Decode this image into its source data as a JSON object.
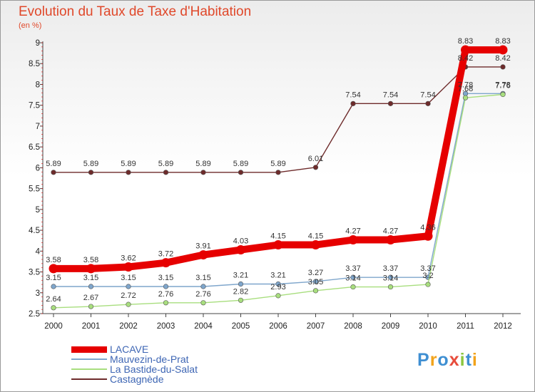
{
  "chart_data": {
    "type": "line",
    "title": "Evolution du Taux de Taxe d'Habitation",
    "subtitle": "(en %)",
    "categories": [
      "2000",
      "2001",
      "2002",
      "2003",
      "2004",
      "2005",
      "2006",
      "2007",
      "2008",
      "2009",
      "2010",
      "2011",
      "2012"
    ],
    "ylim": [
      2.5,
      9
    ],
    "yticks": [
      "2.5",
      "3",
      "3.5",
      "4",
      "4.5",
      "5",
      "5.5",
      "6",
      "6.5",
      "7",
      "7.5",
      "8",
      "8.5",
      "9"
    ],
    "grid": false,
    "legend_position": "bottom-left",
    "series": [
      {
        "name": "LACAVE",
        "color": "#e60000",
        "values": [
          3.58,
          3.58,
          3.62,
          3.72,
          3.91,
          4.03,
          4.15,
          4.15,
          4.27,
          4.27,
          4.36,
          8.83,
          8.83
        ],
        "labels": [
          "3.58",
          "3.58",
          "3.62",
          "3.72",
          "3.91",
          "4.03",
          "4.15",
          "4.15",
          "4.27",
          "4.27",
          "4.36",
          "8.83",
          "8.83"
        ]
      },
      {
        "name": "Mauvezin-de-Prat",
        "color": "#7fa6cc",
        "values": [
          3.15,
          3.15,
          3.15,
          3.15,
          3.15,
          3.21,
          3.21,
          3.27,
          3.37,
          3.37,
          3.37,
          7.78,
          7.78
        ],
        "labels": [
          "3.15",
          "3.15",
          "3.15",
          "3.15",
          "3.15",
          "3.21",
          "3.21",
          "3.27",
          "3.37",
          "3.37",
          "3.37",
          "7.78",
          "7.78"
        ]
      },
      {
        "name": "La Bastide-du-Salat",
        "color": "#a8de7e",
        "values": [
          2.64,
          2.67,
          2.72,
          2.76,
          2.76,
          2.82,
          2.93,
          3.05,
          3.14,
          3.14,
          3.2,
          7.68,
          7.76
        ],
        "labels": [
          "2.64",
          "2.67",
          "2.72",
          "2.76",
          "2.76",
          "2.82",
          "2.93",
          "3.05",
          "3.14",
          "3.14",
          "3.2",
          "7.68",
          "7.76"
        ]
      },
      {
        "name": "Castagnède",
        "color": "#6e2b2b",
        "values": [
          5.89,
          5.89,
          5.89,
          5.89,
          5.89,
          5.89,
          5.89,
          6.01,
          7.54,
          7.54,
          7.54,
          8.42,
          8.42
        ],
        "labels": [
          "5.89",
          "5.89",
          "5.89",
          "5.89",
          "5.89",
          "5.89",
          "5.89",
          "6.01",
          "7.54",
          "7.54",
          "7.54",
          "8.42",
          "8.42"
        ]
      }
    ]
  },
  "logo": {
    "letters": [
      "P",
      "r",
      "o",
      "x",
      "i",
      "t",
      "i"
    ],
    "colors": [
      "#3f8fd2",
      "#f2a31b",
      "#3f8fd2",
      "#e74c3c",
      "#8cc63f",
      "#3f8fd2",
      "#f2a31b"
    ]
  }
}
